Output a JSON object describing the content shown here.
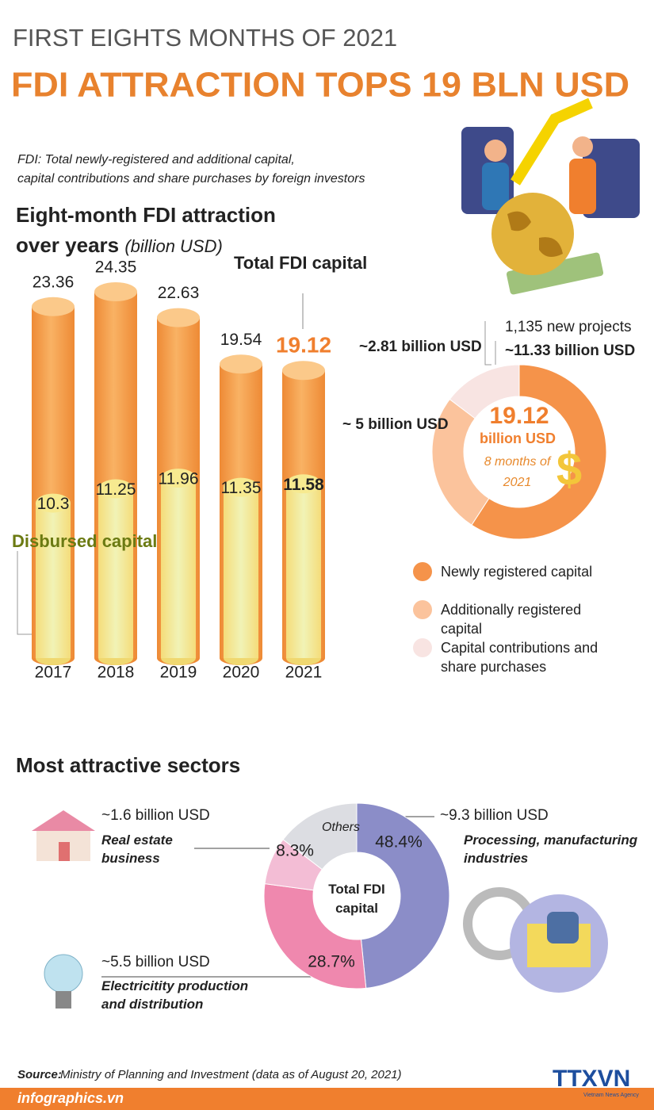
{
  "header": {
    "kicker": "FIRST EIGHTS MONTHS OF 2021",
    "title": "FDI ATTRACTION TOPS 19 BLN USD",
    "note_lines": [
      "FDI: Total newly-registered and additional capital,",
      "capital contributions and share purchases by foreign investors"
    ]
  },
  "chart_data": [
    {
      "type": "cylinder",
      "title": "Eight-month FDI attraction over years",
      "unit": "(billion USD)",
      "categories": [
        "2017",
        "2018",
        "2019",
        "2020",
        "2021"
      ],
      "series": [
        {
          "name": "Total FDI capital",
          "color": "#f7a54a",
          "values": [
            23.36,
            24.35,
            22.63,
            19.54,
            19.12
          ]
        },
        {
          "name": "Disbursed capital",
          "color": "#eef0a6",
          "values": [
            10.3,
            11.25,
            11.96,
            11.35,
            11.58
          ]
        }
      ]
    },
    {
      "type": "donut",
      "categories": [
        "Newly registered capital",
        "Additionally registered capital",
        "Capital contributions and share purchases"
      ],
      "colors": [
        "#f5934a",
        "#fbc39c",
        "#f8e4e2"
      ],
      "values": [
        11.33,
        5,
        2.81
      ],
      "value_labels": [
        "~11.33 billion USD",
        "~ 5 billion USD",
        "~2.81 billion USD"
      ],
      "annotation": "1,135 new projects",
      "center_value": 19.12,
      "center_unit": "billion USD",
      "center_note": "8 months of 2021"
    },
    {
      "type": "donut",
      "title": "Most attractive sectors",
      "center_label": "Total FDI capital",
      "categories": [
        "Processing, manufacturing industries",
        "Electricitity production and distribution",
        "Real estate business",
        "Others"
      ],
      "colors": [
        "#8b8dc8",
        "#ef88ae",
        "#f3bdd5",
        "#dcdde2"
      ],
      "values": [
        48.4,
        28.7,
        8.3,
        14.6
      ],
      "value_labels": [
        "48.4%",
        "28.7%",
        "8.3%",
        null
      ],
      "amount_labels": [
        "~9.3 billion USD",
        "~5.5 billion USD",
        "~1.6 billion USD",
        null
      ]
    }
  ],
  "footer": {
    "source_label": "Source:",
    "source": "Ministry of Planning and Investment (data as of August 20, 2021)",
    "site": "infographics.vn",
    "agency": "TTXVN",
    "agency_sub": "Vietnam News Agency"
  }
}
